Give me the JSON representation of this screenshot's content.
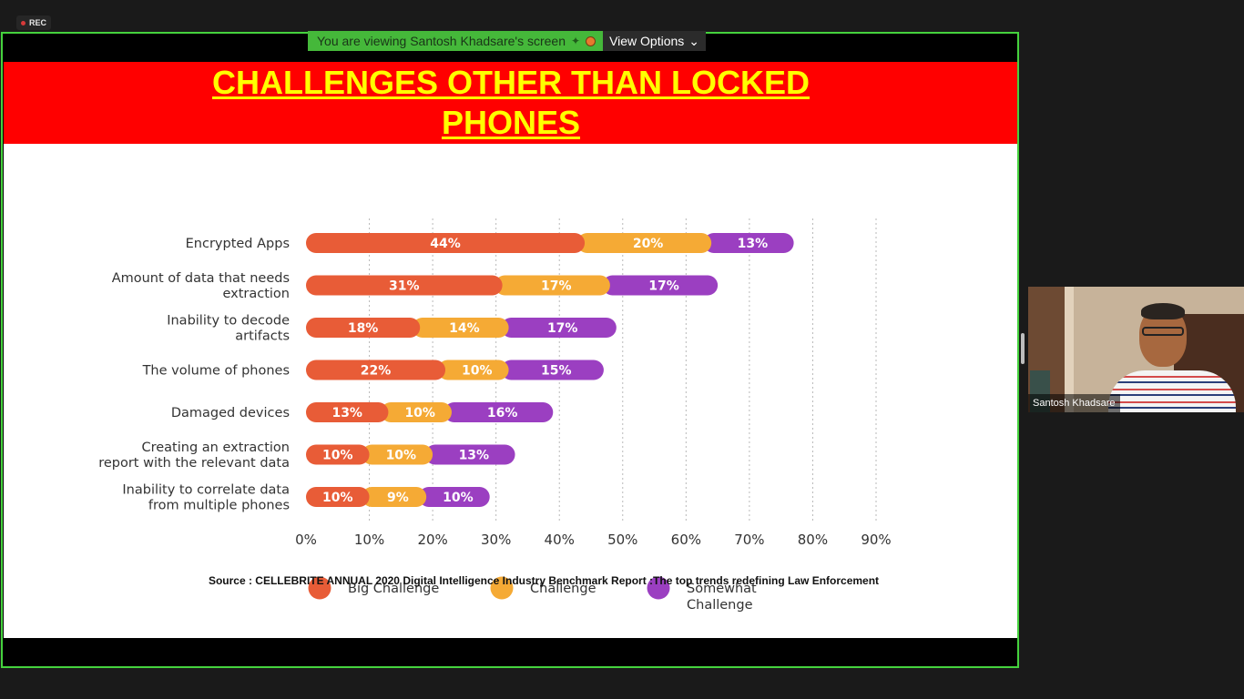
{
  "recording": {
    "label": "REC"
  },
  "banner": {
    "viewing_text": "You are viewing Santosh Khadsare's screen",
    "options_label": "View Options"
  },
  "slide": {
    "title": "CHALLENGES OTHER THAN LOCKED PHONES",
    "source": "Source : CELLEBRITE ANNUAL 2020 Digital Intelligence Industry Benchmark Report :The top trends redefining Law Enforcement"
  },
  "chart_data": {
    "type": "bar",
    "orientation": "horizontal",
    "stacked": true,
    "categories": [
      [
        "Encrypted Apps"
      ],
      [
        "Amount of data that needs",
        "extraction"
      ],
      [
        "Inability to decode",
        "artifacts"
      ],
      [
        "The volume of phones"
      ],
      [
        "Damaged devices"
      ],
      [
        "Creating an extraction",
        "report with the relevant data"
      ],
      [
        "Inability to correlate data",
        "from multiple phones"
      ]
    ],
    "series": [
      {
        "name": "Big Challenge",
        "color": "#e85c37",
        "values": [
          44,
          31,
          18,
          22,
          13,
          10,
          10
        ]
      },
      {
        "name": "Challenge",
        "color": "#f5aa35",
        "values": [
          20,
          17,
          14,
          10,
          10,
          10,
          9
        ]
      },
      {
        "name": "Somewhat Challenge",
        "color": "#9b3fc1",
        "values": [
          13,
          17,
          17,
          15,
          16,
          13,
          10
        ]
      }
    ],
    "x_ticks": [
      "0%",
      "10%",
      "20%",
      "30%",
      "40%",
      "50%",
      "60%",
      "70%",
      "80%",
      "90%"
    ],
    "xlim": [
      0,
      90
    ],
    "grid": "vertical-dotted",
    "legend": [
      {
        "label": [
          "Big Challenge"
        ],
        "color": "#e85c37"
      },
      {
        "label": [
          "Challenge"
        ],
        "color": "#f5aa35"
      },
      {
        "label": [
          "Somewhat",
          "Challenge"
        ],
        "color": "#9b3fc1"
      }
    ],
    "legend_position": "bottom"
  },
  "participant": {
    "name": "Santosh Khadsare"
  }
}
